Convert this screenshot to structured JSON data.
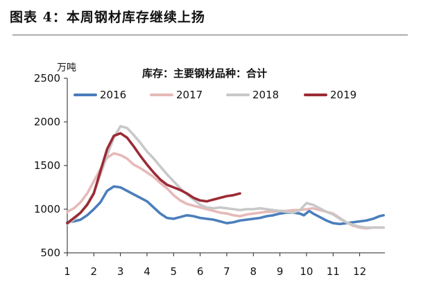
{
  "figure_title": "图表 4：本周钢材库存继续上扬",
  "chart_data": {
    "type": "line",
    "title": "库存：主要钢材品种：合计",
    "ylabel": "万吨",
    "xlabel": "",
    "ylim": [
      500,
      2500
    ],
    "xlim": [
      1,
      12.95
    ],
    "yticks": [
      500,
      1000,
      1500,
      2000,
      2500
    ],
    "xticks": [
      1,
      2,
      3,
      4,
      5,
      6,
      7,
      8,
      9,
      10,
      11,
      12
    ],
    "grid": false,
    "legend": "top",
    "series": [
      {
        "name": "2016",
        "color": "#4a7ebb",
        "points": [
          [
            1.0,
            850
          ],
          [
            1.25,
            860
          ],
          [
            1.5,
            880
          ],
          [
            1.75,
            930
          ],
          [
            2.0,
            1000
          ],
          [
            2.25,
            1080
          ],
          [
            2.5,
            1210
          ],
          [
            2.75,
            1260
          ],
          [
            3.0,
            1250
          ],
          [
            3.25,
            1210
          ],
          [
            3.5,
            1170
          ],
          [
            3.75,
            1130
          ],
          [
            4.0,
            1090
          ],
          [
            4.25,
            1020
          ],
          [
            4.5,
            950
          ],
          [
            4.75,
            900
          ],
          [
            5.0,
            890
          ],
          [
            5.25,
            910
          ],
          [
            5.5,
            930
          ],
          [
            5.75,
            920
          ],
          [
            6.0,
            900
          ],
          [
            6.25,
            890
          ],
          [
            6.5,
            880
          ],
          [
            6.75,
            860
          ],
          [
            7.0,
            840
          ],
          [
            7.25,
            850
          ],
          [
            7.5,
            870
          ],
          [
            7.75,
            880
          ],
          [
            8.0,
            890
          ],
          [
            8.25,
            900
          ],
          [
            8.5,
            920
          ],
          [
            8.75,
            930
          ],
          [
            9.0,
            950
          ],
          [
            9.25,
            960
          ],
          [
            9.5,
            960
          ],
          [
            9.75,
            950
          ],
          [
            9.9,
            930
          ],
          [
            10.1,
            980
          ],
          [
            10.25,
            950
          ],
          [
            10.5,
            910
          ],
          [
            10.75,
            870
          ],
          [
            11.0,
            840
          ],
          [
            11.25,
            830
          ],
          [
            11.5,
            840
          ],
          [
            11.75,
            850
          ],
          [
            12.0,
            860
          ],
          [
            12.25,
            870
          ],
          [
            12.5,
            890
          ],
          [
            12.75,
            920
          ],
          [
            12.9,
            930
          ]
        ]
      },
      {
        "name": "2017",
        "color": "#e6b9b8",
        "points": [
          [
            1.0,
            970
          ],
          [
            1.25,
            1010
          ],
          [
            1.5,
            1080
          ],
          [
            1.75,
            1180
          ],
          [
            2.0,
            1320
          ],
          [
            2.25,
            1460
          ],
          [
            2.5,
            1590
          ],
          [
            2.75,
            1640
          ],
          [
            3.0,
            1620
          ],
          [
            3.25,
            1580
          ],
          [
            3.5,
            1510
          ],
          [
            3.75,
            1470
          ],
          [
            4.0,
            1420
          ],
          [
            4.25,
            1370
          ],
          [
            4.5,
            1300
          ],
          [
            4.75,
            1240
          ],
          [
            5.0,
            1160
          ],
          [
            5.25,
            1100
          ],
          [
            5.5,
            1060
          ],
          [
            5.75,
            1040
          ],
          [
            6.0,
            1020
          ],
          [
            6.25,
            1000
          ],
          [
            6.5,
            980
          ],
          [
            6.75,
            960
          ],
          [
            7.0,
            950
          ],
          [
            7.25,
            930
          ],
          [
            7.5,
            920
          ],
          [
            7.75,
            940
          ],
          [
            8.0,
            950
          ],
          [
            8.25,
            960
          ],
          [
            8.5,
            970
          ],
          [
            8.75,
            970
          ],
          [
            9.0,
            980
          ],
          [
            9.25,
            980
          ],
          [
            9.5,
            990
          ],
          [
            9.75,
            990
          ],
          [
            10.0,
            1000
          ],
          [
            10.25,
            1010
          ],
          [
            10.5,
            990
          ],
          [
            10.75,
            970
          ],
          [
            11.0,
            950
          ],
          [
            11.25,
            900
          ],
          [
            11.5,
            850
          ],
          [
            11.75,
            810
          ],
          [
            12.0,
            790
          ],
          [
            12.25,
            780
          ],
          [
            12.5,
            790
          ],
          [
            12.75,
            790
          ],
          [
            12.9,
            790
          ]
        ]
      },
      {
        "name": "2018",
        "color": "#c8c8c8",
        "points": [
          [
            1.0,
            830
          ],
          [
            1.25,
            880
          ],
          [
            1.5,
            960
          ],
          [
            1.75,
            1060
          ],
          [
            2.0,
            1190
          ],
          [
            2.25,
            1400
          ],
          [
            2.5,
            1620
          ],
          [
            2.75,
            1820
          ],
          [
            3.0,
            1950
          ],
          [
            3.25,
            1930
          ],
          [
            3.5,
            1850
          ],
          [
            3.75,
            1760
          ],
          [
            4.0,
            1660
          ],
          [
            4.25,
            1580
          ],
          [
            4.5,
            1490
          ],
          [
            4.75,
            1400
          ],
          [
            5.0,
            1320
          ],
          [
            5.25,
            1240
          ],
          [
            5.5,
            1170
          ],
          [
            5.75,
            1110
          ],
          [
            6.0,
            1050
          ],
          [
            6.25,
            1020
          ],
          [
            6.5,
            1010
          ],
          [
            6.75,
            1020
          ],
          [
            7.0,
            1010
          ],
          [
            7.25,
            1000
          ],
          [
            7.5,
            990
          ],
          [
            7.75,
            1000
          ],
          [
            8.0,
            1000
          ],
          [
            8.25,
            1010
          ],
          [
            8.5,
            1000
          ],
          [
            8.75,
            990
          ],
          [
            9.0,
            980
          ],
          [
            9.25,
            970
          ],
          [
            9.5,
            960
          ],
          [
            9.75,
            990
          ],
          [
            10.0,
            1070
          ],
          [
            10.25,
            1050
          ],
          [
            10.5,
            1010
          ],
          [
            10.75,
            970
          ],
          [
            11.0,
            940
          ],
          [
            11.25,
            890
          ],
          [
            11.5,
            850
          ],
          [
            11.75,
            820
          ],
          [
            12.0,
            800
          ],
          [
            12.25,
            790
          ],
          [
            12.5,
            790
          ],
          [
            12.75,
            790
          ],
          [
            12.9,
            790
          ]
        ]
      },
      {
        "name": "2019",
        "color": "#9b2b35",
        "points": [
          [
            1.0,
            840
          ],
          [
            1.25,
            900
          ],
          [
            1.5,
            960
          ],
          [
            1.75,
            1050
          ],
          [
            2.0,
            1180
          ],
          [
            2.25,
            1440
          ],
          [
            2.5,
            1690
          ],
          [
            2.75,
            1840
          ],
          [
            3.0,
            1870
          ],
          [
            3.25,
            1820
          ],
          [
            3.5,
            1720
          ],
          [
            3.75,
            1610
          ],
          [
            4.0,
            1510
          ],
          [
            4.25,
            1420
          ],
          [
            4.5,
            1340
          ],
          [
            4.75,
            1280
          ],
          [
            5.0,
            1250
          ],
          [
            5.25,
            1220
          ],
          [
            5.5,
            1180
          ],
          [
            5.75,
            1130
          ],
          [
            6.0,
            1100
          ],
          [
            6.25,
            1090
          ],
          [
            6.5,
            1110
          ],
          [
            6.75,
            1130
          ],
          [
            7.0,
            1150
          ],
          [
            7.25,
            1160
          ],
          [
            7.5,
            1180
          ]
        ]
      }
    ]
  }
}
